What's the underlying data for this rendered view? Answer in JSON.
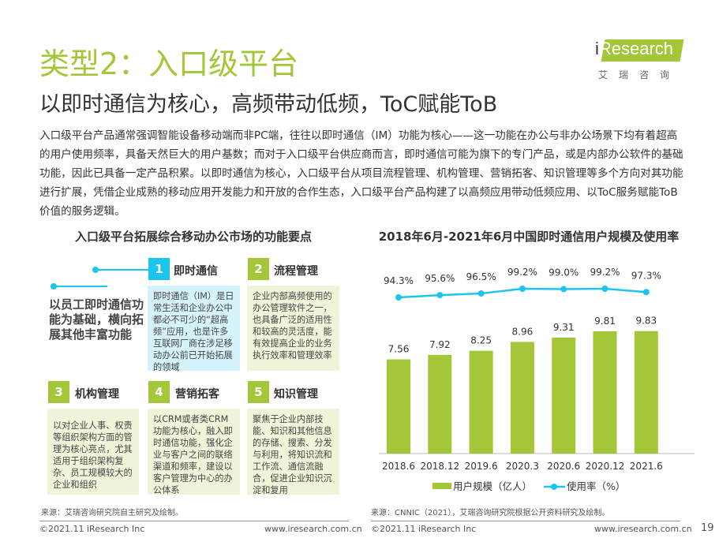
{
  "title": "类型2：入口级平台",
  "subtitle": "以即时通信为核心，高频带动低频，ToC赋能ToB",
  "logo": {
    "word": "Research",
    "i": "i",
    "cn": "艾瑞咨询"
  },
  "intro": "入口级平台产品通常强调智能设备移动端而非PC端，往往以即时通信（IM）功能为核心——这一功能在办公与非办公场景下均有着超高的用户使用频率，具备天然巨大的用户基数；而对于入口级平台供应商而言，即时通信可能为旗下的专门产品，或是内部办公软件的基础功能，因此已具备一定产品积累。以即时通信为核心，入口级平台从项目流程管理、机构管理、营销拓客、知识管理等多个方向对其功能进行扩展，凭借企业成熟的移动应用开发能力和开放的合作生态，入口级平台产品构建了以高频应用带动低频应用、以ToC服务赋能ToB价值的服务逻辑。",
  "left": {
    "title": "入口级平台拓展综合移动办公市场的功能要点",
    "summary": "以员工即时通信功能为基础，横向拓展其他丰富功能",
    "items": [
      {
        "num": "1",
        "head": "即时通信",
        "body": "即时通信（IM）是日常生活和企业办公中都必不可少的“超高频”应用，也是许多互联网厂商在涉足移动办公前已开始拓展的领域"
      },
      {
        "num": "2",
        "head": "流程管理",
        "body": "企业内部高频使用的办公管理软件之一，也具备广泛的适用性和较高的灵活度，能有效提高企业的业务执行效率和管理效率"
      },
      {
        "num": "3",
        "head": "机构管理",
        "body": "以对企业人事、权责等组织架构方面的管理为核心亮点，尤其适用于组织架构复杂、员工规模较大的企业和组织"
      },
      {
        "num": "4",
        "head": "营销拓客",
        "body": "以CRM或者类CRM功能为核心，融入即时通信功能，强化企业与客户之间的联络渠道和频率，建设以客户管理为中心的办公体系"
      },
      {
        "num": "5",
        "head": "知识管理",
        "body": "聚焦于企业内部技能、知识和其他信息的存储、搜索、分发与利用，将知识流和工作流、通信流融合，促进企业知识沉淀和复用"
      }
    ],
    "source": "来源：艾瑞咨询研究院自主研究及绘制。"
  },
  "chart_data": {
    "type": "bar+line",
    "title": "2018年6月-2021年6月中国即时通信用户规模及使用率",
    "categories": [
      "2018.6",
      "2018.12",
      "2019.6",
      "2020.3",
      "2020.6",
      "2020.12",
      "2021.6"
    ],
    "series": [
      {
        "name": "用户规模（亿人）",
        "type": "bar",
        "color": "#a4c639",
        "values": [
          7.56,
          7.92,
          8.25,
          8.96,
          9.31,
          9.81,
          9.83
        ],
        "labels": [
          "7.56",
          "7.92",
          "8.25",
          "8.96",
          "9.31",
          "9.81",
          "9.83"
        ]
      },
      {
        "name": "使用率（%）",
        "type": "line",
        "color": "#1cc5ee",
        "values": [
          94.3,
          95.6,
          96.5,
          99.2,
          99.0,
          99.2,
          97.3
        ],
        "labels": [
          "94.3%",
          "95.6%",
          "96.5%",
          "99.2%",
          "99.0%",
          "99.2%",
          "97.3%"
        ]
      }
    ],
    "legend": "bottom",
    "source": "来源：CNNIC（2021），艾瑞咨询研究院根据公开资料研究及绘制。"
  },
  "footer": {
    "copyright": "©2021.11 iResearch Inc",
    "url": "www.iresearch.com.cn",
    "page": "19"
  }
}
